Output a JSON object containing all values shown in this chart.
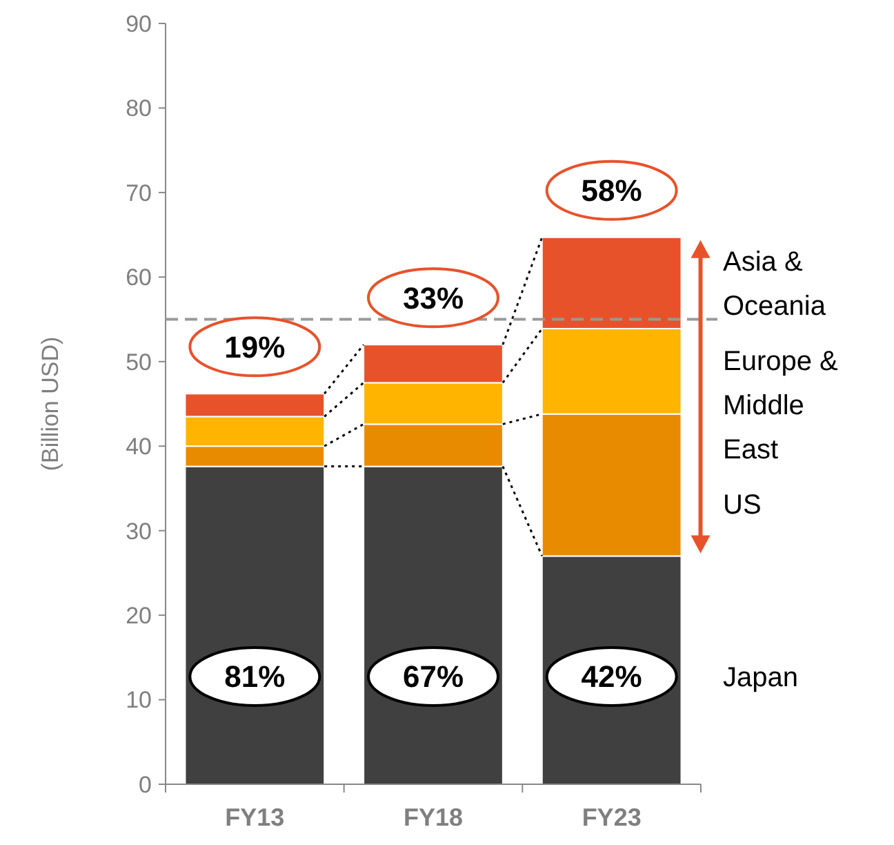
{
  "chart_data": {
    "type": "bar",
    "stacked": true,
    "ylabel": "(Billion USD)",
    "categories": [
      "FY13",
      "FY18",
      "FY23"
    ],
    "series": [
      {
        "name": "Japan",
        "color": "#404040",
        "values": [
          37.6,
          37.6,
          27.0
        ]
      },
      {
        "name": "US",
        "color": "#e98b00",
        "values": [
          2.4,
          5.0,
          16.8
        ]
      },
      {
        "name": "Europe & Middle East",
        "color": "#ffb400",
        "values": [
          3.5,
          4.9,
          10.1
        ]
      },
      {
        "name": "Asia & Oceania",
        "color": "#e8522a",
        "values": [
          2.7,
          4.5,
          10.8
        ]
      }
    ],
    "ylim": [
      0,
      90
    ],
    "yticks": [
      0,
      10,
      20,
      30,
      40,
      50,
      60,
      70,
      80,
      90
    ],
    "grid": false,
    "legend": "right",
    "ref_lines": [
      {
        "axis": "y",
        "value": 55,
        "color": "#999999",
        "line_style": "dashed"
      }
    ],
    "annotations": [
      "19%",
      "33%",
      "58%",
      "81%",
      "67%",
      "42%"
    ]
  }
}
